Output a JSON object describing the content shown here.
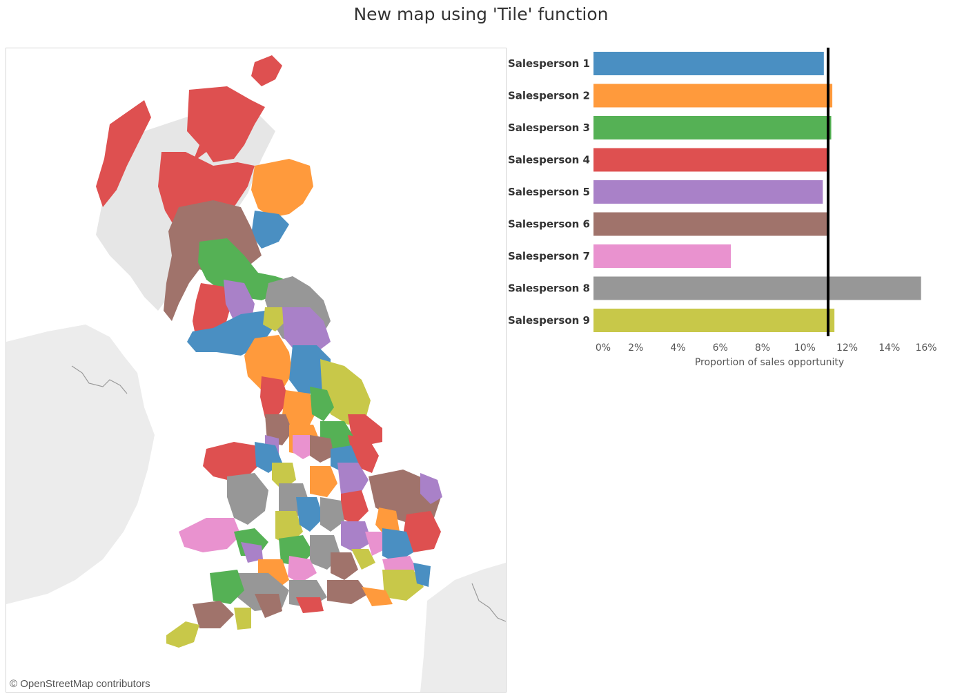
{
  "title": "New map using 'Tile' function",
  "map": {
    "attribution": "© OpenStreetMap contributors",
    "colors": [
      "#4a8fc2",
      "#ff9a3c",
      "#55b155",
      "#de5050",
      "#a981c8",
      "#a0736b",
      "#e992cf",
      "#979797",
      "#c8c849"
    ]
  },
  "chart_data": {
    "type": "bar",
    "orientation": "horizontal",
    "categories": [
      "Salesperson 1",
      "Salesperson 2",
      "Salesperson 3",
      "Salesperson 4",
      "Salesperson 5",
      "Salesperson 6",
      "Salesperson 7",
      "Salesperson 8",
      "Salesperson 9"
    ],
    "values": [
      10.9,
      11.3,
      11.25,
      11.1,
      10.85,
      11.15,
      6.5,
      15.5,
      11.4
    ],
    "colors": [
      "#4a8fc2",
      "#ff9a3c",
      "#55b155",
      "#de5050",
      "#a981c8",
      "#a0736b",
      "#e992cf",
      "#979797",
      "#c8c849"
    ],
    "xlabel": "Proportion of sales opportunity",
    "xlim": [
      0,
      16
    ],
    "xticks": [
      0,
      2,
      4,
      6,
      8,
      10,
      12,
      14,
      16
    ],
    "tick_labels": [
      "0%",
      "2%",
      "4%",
      "6%",
      "8%",
      "10%",
      "12%",
      "14%",
      "16%"
    ],
    "reference_line": 11.1,
    "reference_color": "#000000",
    "grid": false
  }
}
